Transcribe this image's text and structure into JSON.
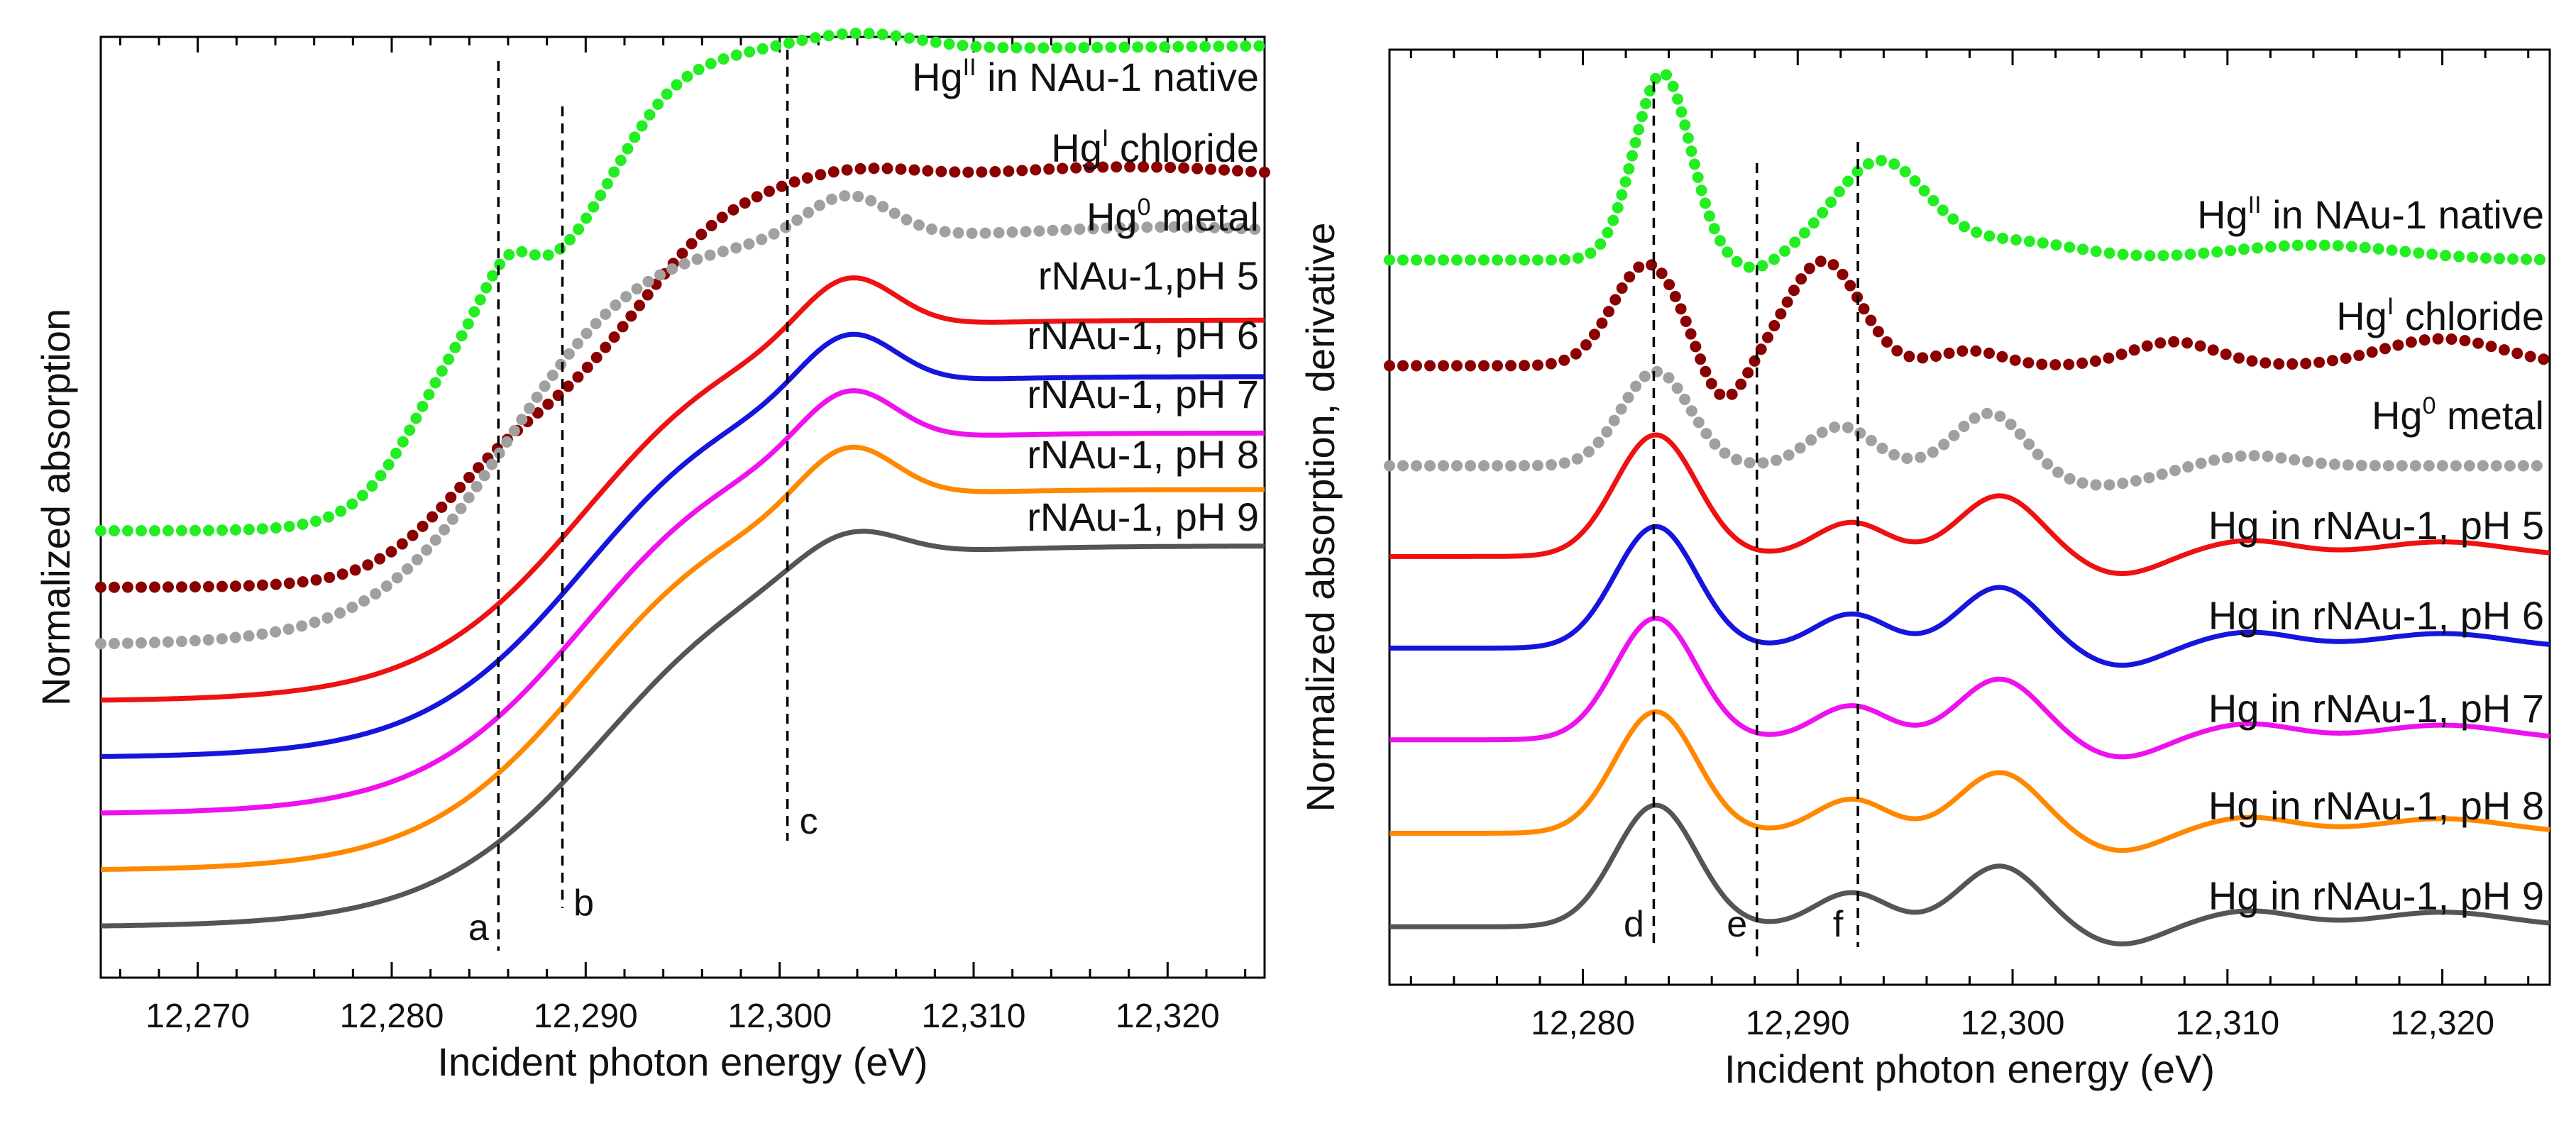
{
  "chart_data": [
    {
      "type": "line",
      "panel": "left",
      "xlabel": "Incident photon energy (eV)",
      "ylabel": "Normalized absorption",
      "xlim": [
        12265,
        12325
      ],
      "ylim": [
        0,
        1
      ],
      "x_ticks": [
        12270,
        12280,
        12290,
        12300,
        12310,
        12320
      ],
      "x_tick_labels": [
        "12,270",
        "12,280",
        "12,290",
        "12,300",
        "12,310",
        "12,320"
      ],
      "markers": [
        {
          "label": "a",
          "x": 12285.5
        },
        {
          "label": "b",
          "x": 12288.8
        },
        {
          "label": "c",
          "x": 12300.4
        }
      ],
      "series": [
        {
          "name": "Hg",
          "sup": "II",
          "suffix": " in NAu-1 native",
          "color": "#22ee22",
          "dotted": true,
          "offset": 0.475,
          "style": "hgii"
        },
        {
          "name": "Hg",
          "sup": "I",
          "suffix": " chloride",
          "color": "#8b0000",
          "dotted": true,
          "offset": 0.415,
          "style": "hgi"
        },
        {
          "name": "Hg",
          "sup": "0",
          "suffix": " metal",
          "color": "#a0a0a0",
          "dotted": true,
          "offset": 0.355,
          "style": "hg0"
        },
        {
          "name": "rNAu-1,pH 5",
          "sup": "",
          "suffix": "",
          "color": "#ee1111",
          "dotted": false,
          "offset": 0.295,
          "style": "r"
        },
        {
          "name": "rNAu-1, pH 6",
          "sup": "",
          "suffix": "",
          "color": "#1515dd",
          "dotted": false,
          "offset": 0.235,
          "style": "r"
        },
        {
          "name": "rNAu-1, pH 7",
          "sup": "",
          "suffix": "",
          "color": "#ee11ee",
          "dotted": false,
          "offset": 0.175,
          "style": "r"
        },
        {
          "name": "rNAu-1, pH 8",
          "sup": "",
          "suffix": "",
          "color": "#ff8800",
          "dotted": false,
          "offset": 0.115,
          "style": "r"
        },
        {
          "name": "rNAu-1, pH 9",
          "sup": "",
          "suffix": "",
          "color": "#555555",
          "dotted": false,
          "offset": 0.055,
          "style": "r9"
        }
      ]
    },
    {
      "type": "line",
      "panel": "right",
      "xlabel": "Incident photon energy (eV)",
      "ylabel": "Normalized absorption, derivative",
      "xlim": [
        12271,
        12325
      ],
      "ylim": [
        0,
        1
      ],
      "x_ticks": [
        12280,
        12290,
        12300,
        12310,
        12320
      ],
      "x_tick_labels": [
        "12,280",
        "12,290",
        "12,300",
        "12,310",
        "12,320"
      ],
      "markers": [
        {
          "label": "d",
          "x": 12283.3
        },
        {
          "label": "e",
          "x": 12288.1
        },
        {
          "label": "f",
          "x": 12292.8
        }
      ],
      "series": [
        {
          "name": "Hg",
          "sup": "II",
          "suffix": " in NAu-1 native",
          "color": "#22ee22",
          "dotted": true,
          "offset": 0.775,
          "style": "d_hgii"
        },
        {
          "name": "Hg",
          "sup": "I",
          "suffix": " chloride",
          "color": "#8b0000",
          "dotted": true,
          "offset": 0.662,
          "style": "d_hgi"
        },
        {
          "name": "Hg",
          "sup": "0",
          "suffix": " metal",
          "color": "#a0a0a0",
          "dotted": true,
          "offset": 0.555,
          "style": "d_hg0"
        },
        {
          "name": "Hg in rNAu-1, pH 5",
          "sup": "",
          "suffix": "",
          "color": "#ee1111",
          "dotted": false,
          "offset": 0.458,
          "style": "d_r"
        },
        {
          "name": "Hg in rNAu-1, pH 6",
          "sup": "",
          "suffix": "",
          "color": "#1515dd",
          "dotted": false,
          "offset": 0.36,
          "style": "d_r"
        },
        {
          "name": "Hg in rNAu-1, pH 7",
          "sup": "",
          "suffix": "",
          "color": "#ee11ee",
          "dotted": false,
          "offset": 0.262,
          "style": "d_r"
        },
        {
          "name": "Hg in rNAu-1, pH 8",
          "sup": "",
          "suffix": "",
          "color": "#ff8800",
          "dotted": false,
          "offset": 0.162,
          "style": "d_r"
        },
        {
          "name": "Hg in rNAu-1, pH 9",
          "sup": "",
          "suffix": "",
          "color": "#555555",
          "dotted": false,
          "offset": 0.062,
          "style": "d_r"
        }
      ]
    }
  ]
}
